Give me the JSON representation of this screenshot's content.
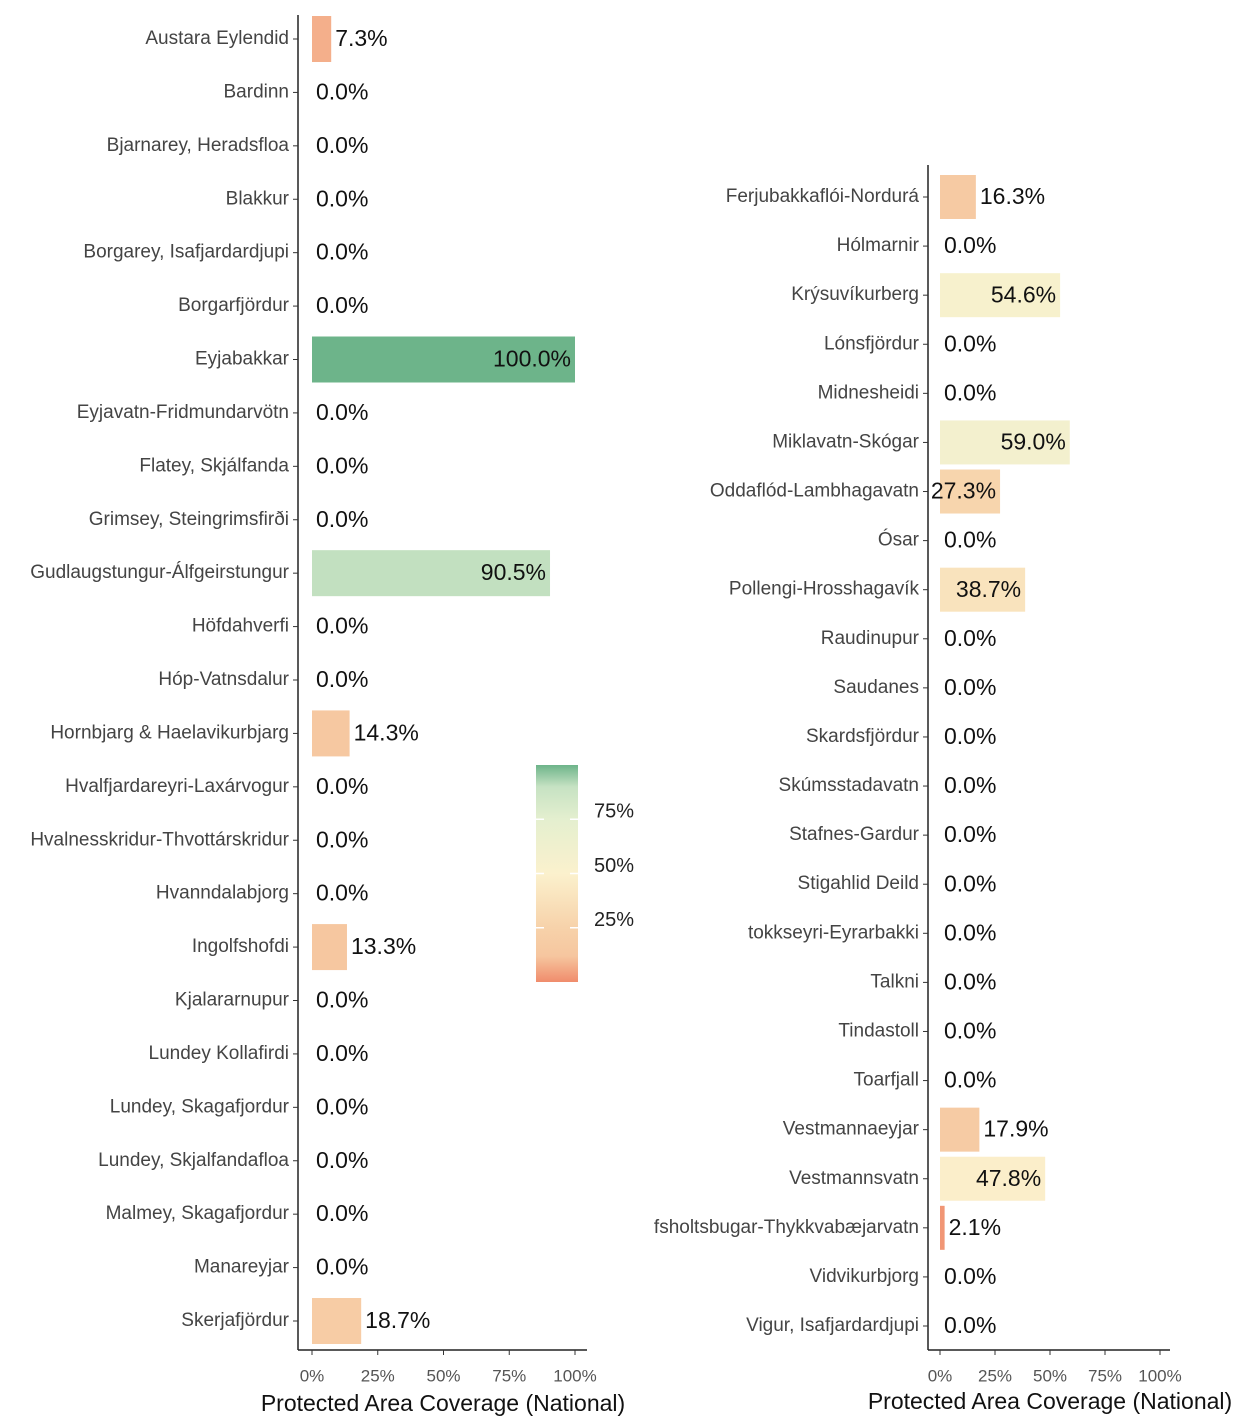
{
  "chart_data": [
    {
      "type": "bar",
      "orientation": "horizontal",
      "x_label": "Protected Area Coverage (National)",
      "categories": [
        "Austara Eylendid",
        "Bardinn",
        "Bjarnarey, Heradsfloa",
        "Blakkur",
        "Borgarey, Isafjardardjupi",
        "Borgarfjördur",
        "Eyjabakkar",
        "Eyjavatn-Fridmundarvötn",
        "Flatey, Skjálfanda",
        "Grimsey, Steingrimsfirði",
        "Gudlaugstungur-Álfgeirstungur",
        "Höfdahverfi",
        "Hóp-Vatnsdalur",
        "Hornbjarg & Haelavikurbjarg",
        "Hvalfjardareyri-Laxárvogur",
        "Hvalnesskridur-Thvottárskridur",
        "Hvanndalabjorg",
        "Ingolfshofdi",
        "Kjalararnupur",
        "Lundey Kollafirdi",
        "Lundey, Skagafjordur",
        "Lundey, Skjalfandafloa",
        "Malmey, Skagafjordur",
        "Manareyjar",
        "Skerjafjördur"
      ],
      "values": [
        7.3,
        0,
        0,
        0,
        0,
        0,
        100,
        0,
        0,
        0,
        90.5,
        0,
        0,
        14.3,
        0,
        0,
        0,
        13.3,
        0,
        0,
        0,
        0,
        0,
        0,
        18.7
      ],
      "value_labels": [
        "7.3%",
        "0.0%",
        "0.0%",
        "0.0%",
        "0.0%",
        "0.0%",
        "100.0%",
        "0.0%",
        "0.0%",
        "0.0%",
        "90.5%",
        "0.0%",
        "0.0%",
        "14.3%",
        "0.0%",
        "0.0%",
        "0.0%",
        "13.3%",
        "0.0%",
        "0.0%",
        "0.0%",
        "0.0%",
        "0.0%",
        "0.0%",
        "18.7%"
      ],
      "xlim": [
        0,
        100
      ],
      "xticks": [
        {
          "value": 0,
          "label": "0%"
        },
        {
          "value": 25,
          "label": "25%"
        },
        {
          "value": 50,
          "label": "50%"
        },
        {
          "value": 75,
          "label": "75%"
        },
        {
          "value": 100,
          "label": "100%"
        }
      ],
      "colorscale": {
        "lim": [
          0,
          100
        ],
        "stops": [
          [
            0,
            "#f08c6c"
          ],
          [
            12,
            "#f6c69f"
          ],
          [
            25,
            "#f7d2aa"
          ],
          [
            50,
            "#fbf1cd"
          ],
          [
            75,
            "#e4efcf"
          ],
          [
            90,
            "#c6e2c3"
          ],
          [
            100,
            "#6db48a"
          ]
        ],
        "ticks": [
          {
            "value": 25,
            "label": "25%"
          },
          {
            "value": 50,
            "label": "50%"
          },
          {
            "value": 75,
            "label": "75%"
          }
        ]
      }
    },
    {
      "type": "bar",
      "orientation": "horizontal",
      "x_label": "Protected Area Coverage (National)",
      "categories": [
        "Ferjubakkaflói-Nordurá",
        "Hólmarnir",
        "Krýsuvíkurberg",
        "Lónsfjördur",
        "Midnesheidi",
        "Miklavatn-Skógar",
        "Oddaflód-Lambhagavatn",
        "Ósar",
        "Pollengi-Hrosshagavík",
        "Raudinupur",
        "Saudanes",
        "Skardsfjördur",
        "Skúmsstadavatn",
        "Stafnes-Gardur",
        "Stigahlid Deild",
        "tokkseyri-Eyrarbakki",
        "Talkni",
        "Tindastoll",
        "Toarfjall",
        "Vestmannaeyjar",
        "Vestmannsvatn",
        "fsholtsbugar-Thykkvabæjarvatn",
        "Vidvikurbjorg",
        "Vigur, Isafjardardjupi"
      ],
      "values": [
        16.3,
        0,
        54.6,
        0,
        0,
        59.0,
        27.3,
        0,
        38.7,
        0,
        0,
        0,
        0,
        0,
        0,
        0,
        0,
        0,
        0,
        17.9,
        47.8,
        2.1,
        0,
        0
      ],
      "value_labels": [
        "16.3%",
        "0.0%",
        "54.6%",
        "0.0%",
        "0.0%",
        "59.0%",
        "27.3%",
        "0.0%",
        "38.7%",
        "0.0%",
        "0.0%",
        "0.0%",
        "0.0%",
        "0.0%",
        "0.0%",
        "0.0%",
        "0.0%",
        "0.0%",
        "0.0%",
        "17.9%",
        "47.8%",
        "2.1%",
        "0.0%",
        "0.0%"
      ],
      "xlim": [
        0,
        100
      ],
      "xticks": [
        {
          "value": 0,
          "label": "0%"
        },
        {
          "value": 25,
          "label": "25%"
        },
        {
          "value": 50,
          "label": "50%"
        },
        {
          "value": 75,
          "label": "75%"
        },
        {
          "value": 100,
          "label": "100%"
        }
      ]
    }
  ]
}
